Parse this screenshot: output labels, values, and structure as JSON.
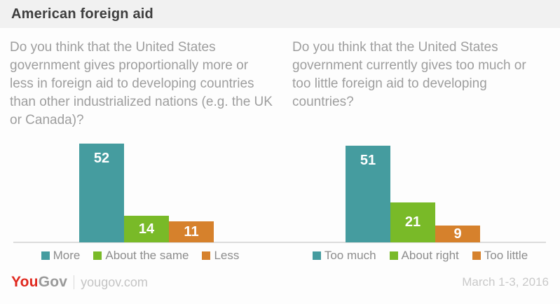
{
  "header": {
    "title": "American foreign aid"
  },
  "colors": {
    "teal": "#459c9f",
    "green": "#79ba28",
    "orange": "#d6812c",
    "header_bg": "#f1f1f1",
    "baseline": "#dcdcdc",
    "question_text": "#9e9e9e",
    "legend_text": "#8d8d8d",
    "logo_red": "#e0291f",
    "logo_gray": "#9a9a9a"
  },
  "chart_data": [
    {
      "type": "bar",
      "question": "Do you think that the United States government gives proportionally more or less in foreign aid to developing countries than other industrialized nations (e.g. the UK or Canada)?",
      "categories": [
        "More",
        "About the same",
        "Less"
      ],
      "values": [
        52,
        14,
        11
      ],
      "colors": [
        "#459c9f",
        "#79ba28",
        "#d6812c"
      ],
      "value_labels": "inside-white",
      "legend_position": "bottom",
      "axes": "hidden",
      "ylim": [
        0,
        60
      ]
    },
    {
      "type": "bar",
      "question": "Do you think that the United States government currently gives too much or too little foreign aid to developing countries?",
      "categories": [
        "Too much",
        "About right",
        "Too little"
      ],
      "values": [
        51,
        21,
        9
      ],
      "colors": [
        "#459c9f",
        "#79ba28",
        "#d6812c"
      ],
      "value_labels": "inside-white",
      "legend_position": "bottom",
      "axes": "hidden",
      "ylim": [
        0,
        60
      ]
    }
  ],
  "footer": {
    "logo_you": "You",
    "logo_gov": "Gov",
    "site": "yougov.com",
    "date": "March 1-3, 2016"
  }
}
